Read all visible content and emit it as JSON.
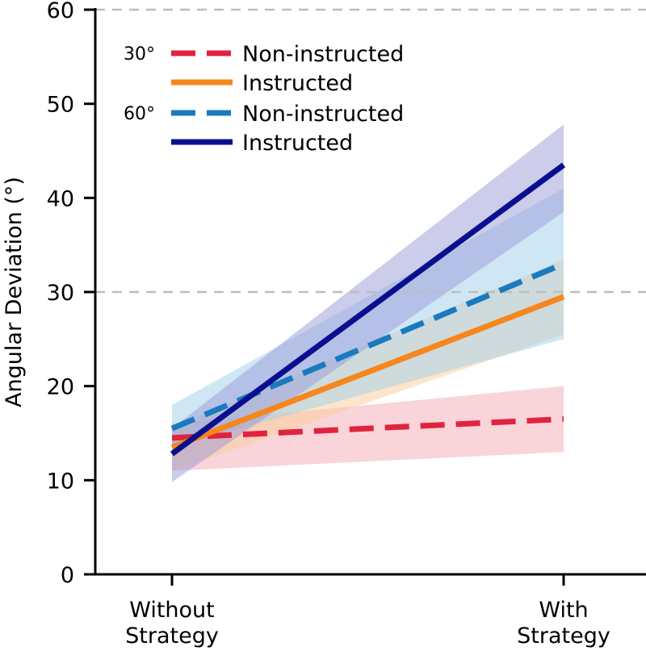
{
  "chart_data": {
    "type": "line",
    "title": "",
    "xlabel": "",
    "ylabel": "Angular Deviation (°)",
    "categories": [
      [
        "Without",
        "Strategy"
      ],
      [
        "With",
        "Strategy"
      ]
    ],
    "ylim": [
      0,
      60
    ],
    "yticks": [
      0,
      10,
      20,
      30,
      40,
      50,
      60
    ],
    "reference_lines": [
      30,
      60
    ],
    "legend": {
      "position": "top-left",
      "groups": [
        {
          "label": "30°",
          "entries": [
            "Non-instructed",
            "Instructed"
          ]
        },
        {
          "label": "60°",
          "entries": [
            "Non-instructed",
            "Instructed"
          ]
        }
      ]
    },
    "series": [
      {
        "name": "Non-instructed",
        "group": "30°",
        "style": "dashed",
        "color": "#e0233f",
        "band_color": "#f4a9b3",
        "values": [
          14.5,
          16.5
        ],
        "lower": [
          11.0,
          13.0
        ],
        "upper": [
          16.0,
          20.0
        ]
      },
      {
        "name": "Instructed",
        "group": "30°",
        "style": "solid",
        "color": "#f7861c",
        "band_color": "#fccc98",
        "values": [
          13.5,
          29.5
        ],
        "lower": [
          11.0,
          25.5
        ],
        "upper": [
          15.5,
          33.5
        ]
      },
      {
        "name": "Non-instructed",
        "group": "60°",
        "style": "dashed",
        "color": "#1a7abf",
        "band_color": "#9fd0ec",
        "values": [
          15.5,
          33.0
        ],
        "lower": [
          13.5,
          25.0
        ],
        "upper": [
          18.0,
          41.0
        ]
      },
      {
        "name": "Instructed",
        "group": "60°",
        "style": "solid",
        "color": "#0a0f8f",
        "band_color": "#9a9ad8",
        "values": [
          12.8,
          43.5
        ],
        "lower": [
          9.8,
          38.5
        ],
        "upper": [
          15.5,
          47.8
        ]
      }
    ]
  }
}
